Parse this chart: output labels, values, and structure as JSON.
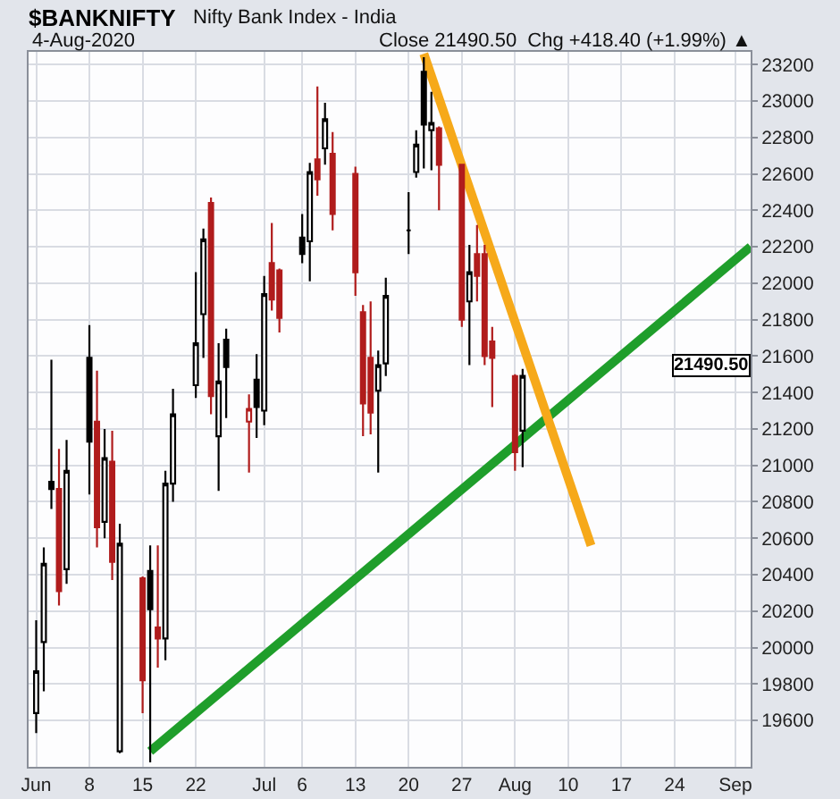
{
  "chart_data": {
    "type": "candlestick",
    "title": "$BANKNIFTY",
    "subtitle": "Nifty Bank Index - India",
    "annotations": [
      "4-Aug-2020",
      "Close 21490.50  Chg +418.40 (+1.99%) ▲",
      "21490.50"
    ],
    "x": [
      "2020-06-01",
      "2020-06-02",
      "2020-06-03",
      "2020-06-04",
      "2020-06-05",
      "2020-06-08",
      "2020-06-09",
      "2020-06-10",
      "2020-06-11",
      "2020-06-12",
      "2020-06-15",
      "2020-06-16",
      "2020-06-17",
      "2020-06-18",
      "2020-06-19",
      "2020-06-22",
      "2020-06-23",
      "2020-06-24",
      "2020-06-25",
      "2020-06-26",
      "2020-06-29",
      "2020-06-30",
      "2020-07-01",
      "2020-07-02",
      "2020-07-03",
      "2020-07-06",
      "2020-07-07",
      "2020-07-08",
      "2020-07-09",
      "2020-07-10",
      "2020-07-13",
      "2020-07-14",
      "2020-07-15",
      "2020-07-16",
      "2020-07-17",
      "2020-07-20",
      "2020-07-21",
      "2020-07-22",
      "2020-07-23",
      "2020-07-24",
      "2020-07-27",
      "2020-07-28",
      "2020-07-29",
      "2020-07-30",
      "2020-07-31",
      "2020-08-03",
      "2020-08-04"
    ],
    "ohlc": [
      [
        19640,
        20150,
        19530,
        19870
      ],
      [
        20030,
        20550,
        19760,
        20460
      ],
      [
        20910,
        21580,
        20760,
        20870
      ],
      [
        20870,
        21090,
        20230,
        20310
      ],
      [
        20430,
        21140,
        20350,
        20970
      ],
      [
        21590,
        21770,
        20840,
        21130
      ],
      [
        21240,
        21520,
        20550,
        20660
      ],
      [
        20690,
        21200,
        20600,
        21040
      ],
      [
        21020,
        21190,
        20370,
        20470
      ],
      [
        19430,
        20680,
        19420,
        20570
      ],
      [
        20380,
        20390,
        19640,
        19820
      ],
      [
        20420,
        20560,
        19370,
        20210
      ],
      [
        20110,
        20560,
        19890,
        20050
      ],
      [
        20050,
        20970,
        19930,
        20900
      ],
      [
        20900,
        21420,
        20800,
        21280
      ],
      [
        21440,
        22060,
        21370,
        21670
      ],
      [
        21830,
        22300,
        21590,
        22240
      ],
      [
        22440,
        22470,
        21280,
        21380
      ],
      [
        21160,
        21670,
        20860,
        21460
      ],
      [
        21690,
        21750,
        21260,
        21540
      ],
      [
        21240,
        21390,
        20960,
        21310
      ],
      [
        21470,
        21610,
        21150,
        21320
      ],
      [
        21300,
        22040,
        21220,
        21940
      ],
      [
        22110,
        22330,
        21850,
        21910
      ],
      [
        22070,
        22080,
        21730,
        21810
      ],
      [
        22250,
        22380,
        22110,
        22160
      ],
      [
        22230,
        22660,
        22010,
        22610
      ],
      [
        22680,
        23080,
        22480,
        22570
      ],
      [
        22740,
        22990,
        22650,
        22900
      ],
      [
        22710,
        22830,
        22290,
        22380
      ],
      [
        22600,
        22640,
        21930,
        22060
      ],
      [
        21840,
        21880,
        21160,
        21340
      ],
      [
        21590,
        21900,
        21170,
        21290
      ],
      [
        21410,
        21630,
        20960,
        21550
      ],
      [
        21560,
        22030,
        21490,
        21930
      ],
      [
        22290,
        22500,
        22160,
        22290
      ],
      [
        22610,
        22840,
        22580,
        22760
      ],
      [
        23160,
        23240,
        22630,
        22870
      ],
      [
        22840,
        23050,
        22620,
        22880
      ],
      [
        22850,
        22860,
        22400,
        22650
      ],
      [
        22650,
        22650,
        21760,
        21800
      ],
      [
        21900,
        22210,
        21550,
        22060
      ],
      [
        22160,
        22320,
        21900,
        22040
      ],
      [
        22160,
        22210,
        21550,
        21600
      ],
      [
        21680,
        21760,
        21320,
        21590
      ],
      [
        21490,
        21500,
        20970,
        21072.1
      ],
      [
        21190,
        21530,
        20990,
        21490.5
      ]
    ],
    "colors": [
      "#000000",
      "#000000",
      "#000000",
      "#b01c1c",
      "#000000",
      "#000000",
      "#b01c1c",
      "#000000",
      "#b01c1c",
      "#000000",
      "#b01c1c",
      "#000000",
      "#b01c1c",
      "#000000",
      "#000000",
      "#000000",
      "#000000",
      "#b01c1c",
      "#000000",
      "#000000",
      "#b01c1c",
      "#000000",
      "#000000",
      "#b01c1c",
      "#b01c1c",
      "#000000",
      "#000000",
      "#b01c1c",
      "#000000",
      "#b01c1c",
      "#b01c1c",
      "#b01c1c",
      "#b01c1c",
      "#000000",
      "#000000",
      "#000000",
      "#000000",
      "#000000",
      "#000000",
      "#b01c1c",
      "#b01c1c",
      "#000000",
      "#b01c1c",
      "#b01c1c",
      "#b01c1c",
      "#b01c1c",
      "#000000"
    ],
    "series": [
      {
        "type": "line",
        "color": "#1f9e2b",
        "x": [
          "2020-06-16",
          "2020-09-03"
        ],
        "values": [
          19430,
          22200
        ]
      },
      {
        "type": "line",
        "color": "#f6a91a",
        "x": [
          "2020-07-22",
          "2020-08-13"
        ],
        "values": [
          23260,
          20560
        ]
      }
    ],
    "xlim": [
      "2020-05-31",
      "2020-09-03"
    ],
    "xticks": [
      {
        "value": "2020-06-01",
        "label": "Jun"
      },
      {
        "value": "2020-06-08",
        "label": "8"
      },
      {
        "value": "2020-06-15",
        "label": "15"
      },
      {
        "value": "2020-06-22",
        "label": "22"
      },
      {
        "value": "2020-07-01",
        "label": "Jul"
      },
      {
        "value": "2020-07-06",
        "label": "6"
      },
      {
        "value": "2020-07-13",
        "label": "13"
      },
      {
        "value": "2020-07-20",
        "label": "20"
      },
      {
        "value": "2020-07-27",
        "label": "27"
      },
      {
        "value": "2020-08-03",
        "label": "Aug"
      },
      {
        "value": "2020-08-10",
        "label": "10"
      },
      {
        "value": "2020-08-17",
        "label": "17"
      },
      {
        "value": "2020-08-24",
        "label": "24"
      },
      {
        "value": "2020-09-01",
        "label": "Sep"
      }
    ],
    "ylim": [
      19345,
      23270
    ],
    "yticks": [
      19600,
      19800,
      20000,
      20200,
      20400,
      20600,
      20800,
      21000,
      21200,
      21400,
      21600,
      21800,
      22000,
      22200,
      22400,
      22600,
      22800,
      23000,
      23200
    ],
    "grid": true
  }
}
